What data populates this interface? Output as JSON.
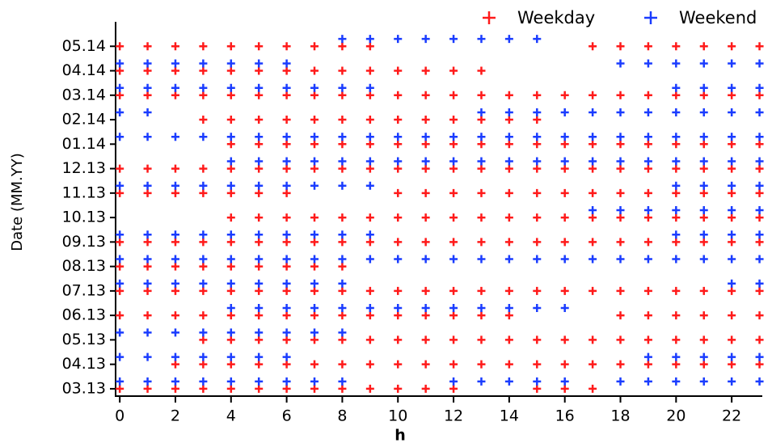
{
  "chart_data": {
    "type": "scatter",
    "x_label": "h",
    "y_label": "Date (MM.YY)",
    "legend": "top-right",
    "xlim": [
      -0.15,
      23.1
    ],
    "xticks": [
      0,
      2,
      4,
      6,
      8,
      10,
      12,
      14,
      16,
      18,
      20,
      22
    ],
    "ylim": [
      -0.3,
      15
    ],
    "yticks": [
      {
        "value": 0,
        "label": "03.13"
      },
      {
        "value": 1,
        "label": "04.13"
      },
      {
        "value": 2,
        "label": "05.13"
      },
      {
        "value": 3,
        "label": "06.13"
      },
      {
        "value": 4,
        "label": "07.13"
      },
      {
        "value": 5,
        "label": "08.13"
      },
      {
        "value": 6,
        "label": "09.13"
      },
      {
        "value": 7,
        "label": "10.13"
      },
      {
        "value": 8,
        "label": "11.13"
      },
      {
        "value": 9,
        "label": "12.13"
      },
      {
        "value": 10,
        "label": "01.14"
      },
      {
        "value": 11,
        "label": "02.14"
      },
      {
        "value": 12,
        "label": "03.14"
      },
      {
        "value": 13,
        "label": "04.14"
      },
      {
        "value": 14,
        "label": "05.14"
      }
    ],
    "series": [
      {
        "name": "Weekday",
        "color": "#ff1a1a",
        "x": [
          0,
          1,
          2,
          3,
          4,
          5,
          6,
          7,
          8,
          9,
          10,
          11,
          12,
          15,
          16,
          17,
          2,
          3,
          4,
          5,
          6,
          7,
          8,
          9,
          10,
          11,
          12,
          13,
          14,
          15,
          16,
          17,
          18,
          19,
          20,
          21,
          22,
          23,
          3,
          4,
          5,
          6,
          7,
          8,
          9,
          10,
          11,
          12,
          13,
          14,
          15,
          16,
          17,
          18,
          19,
          20,
          21,
          22,
          23,
          0,
          1,
          2,
          3,
          4,
          5,
          6,
          7,
          8,
          9,
          10,
          11,
          12,
          13,
          14,
          18,
          19,
          20,
          21,
          22,
          23,
          0,
          1,
          2,
          3,
          4,
          5,
          6,
          7,
          8,
          9,
          10,
          11,
          12,
          13,
          14,
          15,
          16,
          17,
          18,
          19,
          20,
          21,
          22,
          23,
          0,
          1,
          2,
          3,
          4,
          5,
          6,
          7,
          8,
          0,
          1,
          2,
          3,
          4,
          5,
          6,
          7,
          8,
          9,
          10,
          11,
          12,
          13,
          14,
          15,
          16,
          17,
          18,
          19,
          20,
          21,
          22,
          23,
          4,
          5,
          6,
          7,
          8,
          9,
          10,
          11,
          12,
          13,
          14,
          15,
          16,
          17,
          18,
          19,
          20,
          21,
          22,
          23,
          0,
          1,
          2,
          3,
          4,
          5,
          6,
          10,
          11,
          12,
          13,
          14,
          15,
          16,
          17,
          18,
          19,
          20,
          21,
          22,
          23,
          0,
          1,
          2,
          3,
          4,
          5,
          6,
          7,
          8,
          9,
          10,
          11,
          12,
          13,
          14,
          15,
          16,
          17,
          18,
          19,
          20,
          21,
          22,
          23,
          4,
          5,
          6,
          7,
          8,
          9,
          10,
          11,
          12,
          13,
          14,
          15,
          16,
          17,
          18,
          19,
          20,
          21,
          22,
          23,
          3,
          4,
          5,
          6,
          7,
          8,
          9,
          10,
          11,
          12,
          13,
          14,
          15,
          0,
          1,
          2,
          3,
          4,
          5,
          6,
          7,
          8,
          9,
          10,
          11,
          12,
          13,
          14,
          15,
          16,
          17,
          18,
          19,
          20,
          21,
          22,
          23,
          0,
          1,
          2,
          3,
          4,
          5,
          6,
          7,
          8,
          9,
          10,
          11,
          12,
          13,
          0,
          1,
          2,
          3,
          4,
          5,
          6,
          7,
          8,
          9,
          17,
          18,
          19,
          20,
          21,
          22,
          23
        ],
        "values": [
          0,
          0,
          0,
          0,
          0,
          0,
          0,
          0,
          0,
          0,
          0,
          0,
          0,
          0,
          0,
          0,
          1,
          1,
          1,
          1,
          1,
          1,
          1,
          1,
          1,
          1,
          1,
          1,
          1,
          1,
          1,
          1,
          1,
          1,
          1,
          1,
          1,
          1,
          2,
          2,
          2,
          2,
          2,
          2,
          2,
          2,
          2,
          2,
          2,
          2,
          2,
          2,
          2,
          2,
          2,
          2,
          2,
          2,
          2,
          3,
          3,
          3,
          3,
          3,
          3,
          3,
          3,
          3,
          3,
          3,
          3,
          3,
          3,
          3,
          3,
          3,
          3,
          3,
          3,
          3,
          4,
          4,
          4,
          4,
          4,
          4,
          4,
          4,
          4,
          4,
          4,
          4,
          4,
          4,
          4,
          4,
          4,
          4,
          4,
          4,
          4,
          4,
          4,
          4,
          5,
          5,
          5,
          5,
          5,
          5,
          5,
          5,
          5,
          6,
          6,
          6,
          6,
          6,
          6,
          6,
          6,
          6,
          6,
          6,
          6,
          6,
          6,
          6,
          6,
          6,
          6,
          6,
          6,
          6,
          6,
          6,
          6,
          7,
          7,
          7,
          7,
          7,
          7,
          7,
          7,
          7,
          7,
          7,
          7,
          7,
          7,
          7,
          7,
          7,
          7,
          7,
          7,
          8,
          8,
          8,
          8,
          8,
          8,
          8,
          8,
          8,
          8,
          8,
          8,
          8,
          8,
          8,
          8,
          8,
          8,
          8,
          8,
          8,
          9,
          9,
          9,
          9,
          9,
          9,
          9,
          9,
          9,
          9,
          9,
          9,
          9,
          9,
          9,
          9,
          9,
          9,
          9,
          9,
          9,
          9,
          9,
          9,
          10,
          10,
          10,
          10,
          10,
          10,
          10,
          10,
          10,
          10,
          10,
          10,
          10,
          10,
          10,
          10,
          10,
          10,
          10,
          10,
          11,
          11,
          11,
          11,
          11,
          11,
          11,
          11,
          11,
          11,
          11,
          11,
          11,
          12,
          12,
          12,
          12,
          12,
          12,
          12,
          12,
          12,
          12,
          12,
          12,
          12,
          12,
          12,
          12,
          12,
          12,
          12,
          12,
          12,
          12,
          12,
          12,
          13,
          13,
          13,
          13,
          13,
          13,
          13,
          13,
          13,
          13,
          13,
          13,
          13,
          13,
          14,
          14,
          14,
          14,
          14,
          14,
          14,
          14,
          14,
          14,
          14,
          14,
          14,
          14,
          14,
          14,
          14
        ]
      },
      {
        "name": "Weekend",
        "color": "#1a3cff",
        "x": [
          0,
          1,
          2,
          3,
          4,
          5,
          6,
          7,
          8,
          12,
          13,
          14,
          15,
          16,
          18,
          19,
          20,
          21,
          22,
          23,
          0,
          1,
          2,
          3,
          4,
          5,
          6,
          19,
          20,
          21,
          22,
          23,
          0,
          1,
          2,
          3,
          4,
          5,
          6,
          7,
          8,
          4,
          5,
          6,
          7,
          8,
          9,
          10,
          11,
          12,
          13,
          14,
          15,
          16,
          0,
          1,
          2,
          3,
          4,
          5,
          6,
          7,
          8,
          22,
          23,
          0,
          1,
          2,
          3,
          4,
          5,
          6,
          7,
          8,
          9,
          10,
          11,
          12,
          13,
          14,
          15,
          16,
          17,
          18,
          19,
          20,
          21,
          22,
          23,
          0,
          1,
          2,
          3,
          4,
          5,
          6,
          7,
          8,
          9,
          20,
          21,
          22,
          23,
          17,
          18,
          19,
          20,
          21,
          22,
          23,
          0,
          1,
          2,
          3,
          4,
          5,
          6,
          7,
          8,
          9,
          20,
          21,
          22,
          23,
          4,
          5,
          6,
          7,
          8,
          9,
          10,
          11,
          12,
          13,
          14,
          15,
          16,
          17,
          18,
          19,
          20,
          21,
          22,
          23,
          0,
          1,
          2,
          3,
          4,
          5,
          6,
          7,
          8,
          9,
          10,
          11,
          12,
          13,
          14,
          15,
          16,
          17,
          18,
          19,
          20,
          21,
          22,
          23,
          0,
          1,
          13,
          14,
          15,
          16,
          17,
          18,
          19,
          20,
          21,
          22,
          23,
          0,
          1,
          2,
          3,
          4,
          5,
          6,
          7,
          8,
          9,
          20,
          21,
          22,
          23,
          0,
          1,
          2,
          3,
          4,
          5,
          6,
          18,
          19,
          20,
          21,
          22,
          23,
          8,
          9,
          10,
          11,
          12,
          13,
          14,
          15
        ],
        "values": [
          0.3,
          0.3,
          0.3,
          0.3,
          0.3,
          0.3,
          0.3,
          0.3,
          0.3,
          0.3,
          0.3,
          0.3,
          0.3,
          0.3,
          0.3,
          0.3,
          0.3,
          0.3,
          0.3,
          0.3,
          1.3,
          1.3,
          1.3,
          1.3,
          1.3,
          1.3,
          1.3,
          1.3,
          1.3,
          1.3,
          1.3,
          1.3,
          2.3,
          2.3,
          2.3,
          2.3,
          2.3,
          2.3,
          2.3,
          2.3,
          2.3,
          3.3,
          3.3,
          3.3,
          3.3,
          3.3,
          3.3,
          3.3,
          3.3,
          3.3,
          3.3,
          3.3,
          3.3,
          3.3,
          4.3,
          4.3,
          4.3,
          4.3,
          4.3,
          4.3,
          4.3,
          4.3,
          4.3,
          4.3,
          4.3,
          5.3,
          5.3,
          5.3,
          5.3,
          5.3,
          5.3,
          5.3,
          5.3,
          5.3,
          5.3,
          5.3,
          5.3,
          5.3,
          5.3,
          5.3,
          5.3,
          5.3,
          5.3,
          5.3,
          5.3,
          5.3,
          5.3,
          5.3,
          5.3,
          6.3,
          6.3,
          6.3,
          6.3,
          6.3,
          6.3,
          6.3,
          6.3,
          6.3,
          6.3,
          6.3,
          6.3,
          6.3,
          6.3,
          7.3,
          7.3,
          7.3,
          7.3,
          7.3,
          7.3,
          7.3,
          8.3,
          8.3,
          8.3,
          8.3,
          8.3,
          8.3,
          8.3,
          8.3,
          8.3,
          8.3,
          8.3,
          8.3,
          8.3,
          8.3,
          9.3,
          9.3,
          9.3,
          9.3,
          9.3,
          9.3,
          9.3,
          9.3,
          9.3,
          9.3,
          9.3,
          9.3,
          9.3,
          9.3,
          9.3,
          9.3,
          9.3,
          9.3,
          9.3,
          9.3,
          10.3,
          10.3,
          10.3,
          10.3,
          10.3,
          10.3,
          10.3,
          10.3,
          10.3,
          10.3,
          10.3,
          10.3,
          10.3,
          10.3,
          10.3,
          10.3,
          10.3,
          10.3,
          10.3,
          10.3,
          10.3,
          10.3,
          10.3,
          10.3,
          11.3,
          11.3,
          11.3,
          11.3,
          11.3,
          11.3,
          11.3,
          11.3,
          11.3,
          11.3,
          11.3,
          11.3,
          11.3,
          12.3,
          12.3,
          12.3,
          12.3,
          12.3,
          12.3,
          12.3,
          12.3,
          12.3,
          12.3,
          12.3,
          12.3,
          12.3,
          12.3,
          13.3,
          13.3,
          13.3,
          13.3,
          13.3,
          13.3,
          13.3,
          13.3,
          13.3,
          13.3,
          13.3,
          13.3,
          13.3,
          14.3,
          14.3,
          14.3,
          14.3,
          14.3,
          14.3,
          14.3,
          14.3
        ]
      }
    ]
  }
}
